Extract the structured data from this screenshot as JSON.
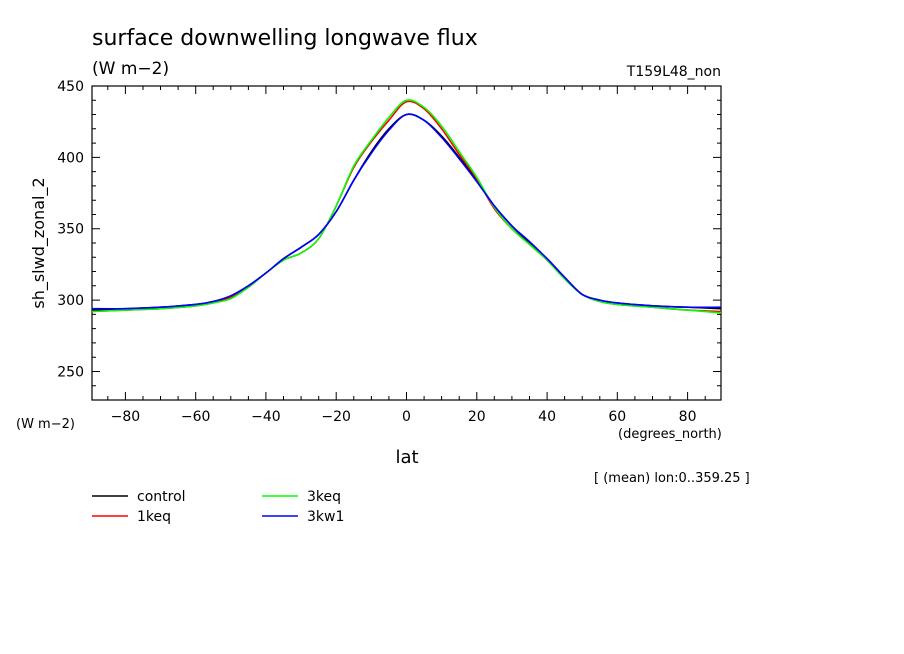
{
  "chart_data": {
    "type": "line",
    "title": "surface downwelling longwave flux",
    "subtitle": "(W m−2)",
    "run_label": "T159L48_non",
    "ylabel": "sh_slwd_zonal_2",
    "yunit_label": "(W m−2)",
    "xlabel": "lat",
    "xunit_label": "(degrees_north)",
    "footnote": "[ (mean) lon:0..359.25 ]",
    "xlim": [
      -89.5,
      89.5
    ],
    "ylim": [
      230,
      450
    ],
    "xticks": [
      -80,
      -60,
      -40,
      -20,
      0,
      20,
      40,
      60,
      80
    ],
    "xtick_labels": [
      "−80",
      "−60",
      "−40",
      "−20",
      "0",
      "20",
      "40",
      "60",
      "80"
    ],
    "yticks": [
      250,
      300,
      350,
      400,
      450
    ],
    "ytick_labels": [
      "250",
      "300",
      "350",
      "400",
      "450"
    ],
    "grid": false,
    "legend_position": "bottom-left",
    "x": [
      -89.5,
      -80,
      -70,
      -60,
      -55,
      -50,
      -45,
      -40,
      -35,
      -30,
      -25,
      -20,
      -15,
      -10,
      -5,
      0,
      5,
      10,
      15,
      20,
      25,
      30,
      35,
      40,
      45,
      50,
      55,
      60,
      70,
      80,
      89.5
    ],
    "series": [
      {
        "name": "control",
        "color": "#000000",
        "values": [
          293,
          294,
          295,
          297,
          299,
          303,
          310,
          319,
          329,
          337,
          346,
          362,
          384,
          404,
          420,
          430,
          426,
          415,
          400,
          384,
          366,
          352,
          340,
          329,
          316,
          304,
          300,
          298,
          296,
          295,
          294
        ]
      },
      {
        "name": "1keq",
        "color": "#ff0000",
        "values": [
          292,
          293,
          294,
          296,
          298,
          302,
          309,
          319,
          328,
          333,
          343,
          366,
          393,
          411,
          426,
          439,
          434,
          420,
          402,
          385,
          364,
          350,
          339,
          328,
          315,
          304,
          299,
          297,
          295,
          293,
          292
        ]
      },
      {
        "name": "3keq",
        "color": "#00ff00",
        "values": [
          292,
          293,
          294,
          296,
          298,
          301,
          309,
          319,
          328,
          333,
          343,
          366,
          394,
          412,
          428,
          440,
          435,
          422,
          404,
          386,
          365,
          350,
          339,
          328,
          315,
          304,
          299,
          297,
          295,
          293,
          291
        ]
      },
      {
        "name": "3kw1",
        "color": "#0000ff",
        "values": [
          294,
          294,
          295,
          297,
          299,
          303,
          310,
          319,
          329,
          337,
          346,
          362,
          384,
          403,
          419,
          430,
          426,
          414,
          399,
          383,
          366,
          352,
          341,
          329,
          316,
          304,
          300,
          298,
          296,
          295,
          295
        ]
      }
    ]
  }
}
